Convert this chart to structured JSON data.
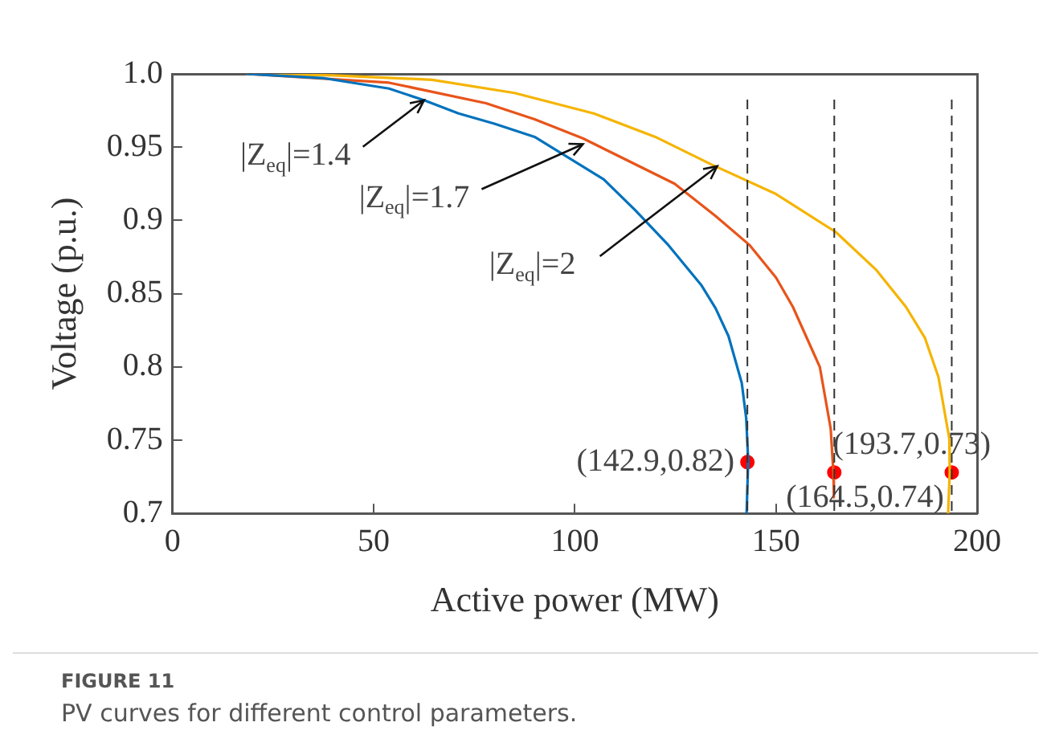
{
  "chart_data": {
    "type": "line",
    "xlabel": "Active power (MW)",
    "ylabel": "Voltage (p.u.)",
    "xlim": [
      0,
      200
    ],
    "xticks": [
      0,
      50,
      100,
      150,
      200
    ],
    "ylim": [
      0.7,
      1.0
    ],
    "yticks": [
      0.7,
      0.75,
      0.8,
      0.85,
      0.9,
      0.95,
      {
        "value": 1.0,
        "label": "1.0"
      }
    ],
    "grid": false,
    "legend": false,
    "marker": "none",
    "line_style": "solid",
    "series": [
      {
        "color": "#0072bd",
        "x": [
          18.3,
          37.8,
          53.8,
          62.5,
          71.1,
          80,
          90,
          107.2,
          115,
          123.3,
          131.4,
          135,
          138.2,
          141.5,
          142.6,
          143.1,
          142.7
        ],
        "values": [
          1.0,
          0.997,
          0.99,
          0.982,
          0.973,
          0.966,
          0.957,
          0.928,
          0.907,
          0.883,
          0.856,
          0.84,
          0.821,
          0.789,
          0.765,
          0.736,
          0.7
        ]
      },
      {
        "color": "#e8541a",
        "x": [
          18.3,
          53.8,
          77.9,
          90,
          102,
          124.8,
          135,
          143.5,
          150,
          154.2,
          160.9,
          163.6,
          164.3,
          164.4
        ],
        "values": [
          1.0,
          0.994,
          0.98,
          0.969,
          0.956,
          0.925,
          0.903,
          0.883,
          0.861,
          0.841,
          0.8,
          0.758,
          0.727,
          0.711
        ]
      },
      {
        "color": "#f5b400",
        "x": [
          18.3,
          40,
          64.5,
          85,
          104.7,
          120,
          134.1,
          150,
          164.9,
          175,
          182.3,
          187,
          190.4,
          193.1,
          193.2,
          192.8
        ],
        "values": [
          1.0,
          0.999,
          0.996,
          0.987,
          0.973,
          0.957,
          0.938,
          0.918,
          0.892,
          0.866,
          0.841,
          0.82,
          0.793,
          0.751,
          0.728,
          0.7
        ]
      },
      {
        "type": "scatter",
        "color": "#ff0000",
        "marker": "circle",
        "x": [
          142.9,
          164.5,
          193.7
        ],
        "values": [
          0.735,
          0.728,
          0.728
        ]
      }
    ],
    "ref_lines": [
      {
        "axis": "x",
        "value": 142.9,
        "color": "#333333",
        "line_style": "dashed"
      },
      {
        "axis": "x",
        "value": 164.5,
        "color": "#333333",
        "line_style": "dashed"
      },
      {
        "axis": "x",
        "value": 193.7,
        "color": "#333333",
        "line_style": "dashed"
      }
    ],
    "annotations": [
      {
        "text": "|Z$_{eq}$|=1.4",
        "x": 62.5,
        "y": 0.982
      },
      {
        "text": "|Z$_{eq}$|=1.7",
        "x": 102,
        "y": 0.952
      },
      {
        "text": "|Z$_{eq}$|=2",
        "x": 135.4,
        "y": 0.937
      },
      {
        "text": "(142.9,0.82)",
        "x": 142.9,
        "y": 0.735
      },
      {
        "text": "(164.5,0.74)",
        "x": 164.5,
        "y": 0.728
      },
      {
        "text": "(193.7,0.73)",
        "x": 193.7,
        "y": 0.728
      },
      "FIGURE 11",
      "PV curves for different control parameters."
    ]
  }
}
